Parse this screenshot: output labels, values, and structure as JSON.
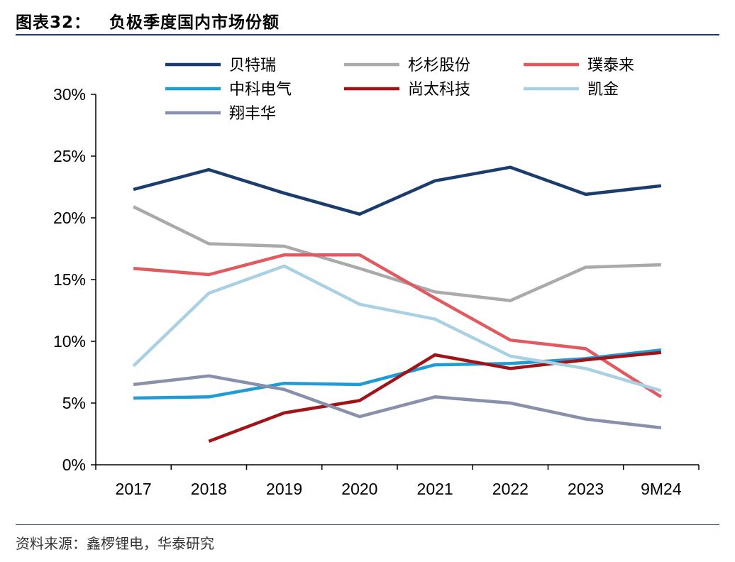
{
  "figure": {
    "number_label": "图表32：",
    "title": "负极季度国内市场份额",
    "source": "资料来源：鑫椤锂电，华泰研究"
  },
  "chart_data": {
    "type": "line",
    "categories": [
      "2017",
      "2018",
      "2019",
      "2020",
      "2021",
      "2022",
      "2023",
      "9M24"
    ],
    "y_ticks": [
      "0%",
      "5%",
      "10%",
      "15%",
      "20%",
      "25%",
      "30%"
    ],
    "ylim": [
      0,
      30
    ],
    "y_unit": "%",
    "grid": false,
    "legend_position": "top",
    "series": [
      {
        "name": "贝特瑞",
        "color": "#1a3d6e",
        "values": [
          22.3,
          23.9,
          22.0,
          20.3,
          23.0,
          24.1,
          21.9,
          22.6
        ]
      },
      {
        "name": "杉杉股份",
        "color": "#aaaaaa",
        "values": [
          20.9,
          17.9,
          17.7,
          15.9,
          14.0,
          13.3,
          16.0,
          16.2
        ]
      },
      {
        "name": "璞泰来",
        "color": "#e05a5f",
        "values": [
          15.9,
          15.4,
          17.0,
          17.0,
          13.5,
          10.1,
          9.4,
          5.5
        ]
      },
      {
        "name": "中科电气",
        "color": "#1f9bd6",
        "values": [
          5.4,
          5.5,
          6.6,
          6.5,
          8.1,
          8.2,
          8.6,
          9.3
        ]
      },
      {
        "name": "尚太科技",
        "color": "#a11317",
        "values": [
          null,
          1.9,
          4.2,
          5.2,
          8.9,
          7.8,
          8.5,
          9.1
        ]
      },
      {
        "name": "凯金",
        "color": "#a9d1e3",
        "values": [
          8.0,
          13.9,
          16.1,
          13.0,
          11.8,
          8.8,
          7.8,
          6.0
        ]
      },
      {
        "name": "翔丰华",
        "color": "#8890ab",
        "values": [
          6.5,
          7.2,
          6.1,
          3.9,
          5.5,
          5.0,
          3.7,
          3.0
        ]
      }
    ]
  }
}
